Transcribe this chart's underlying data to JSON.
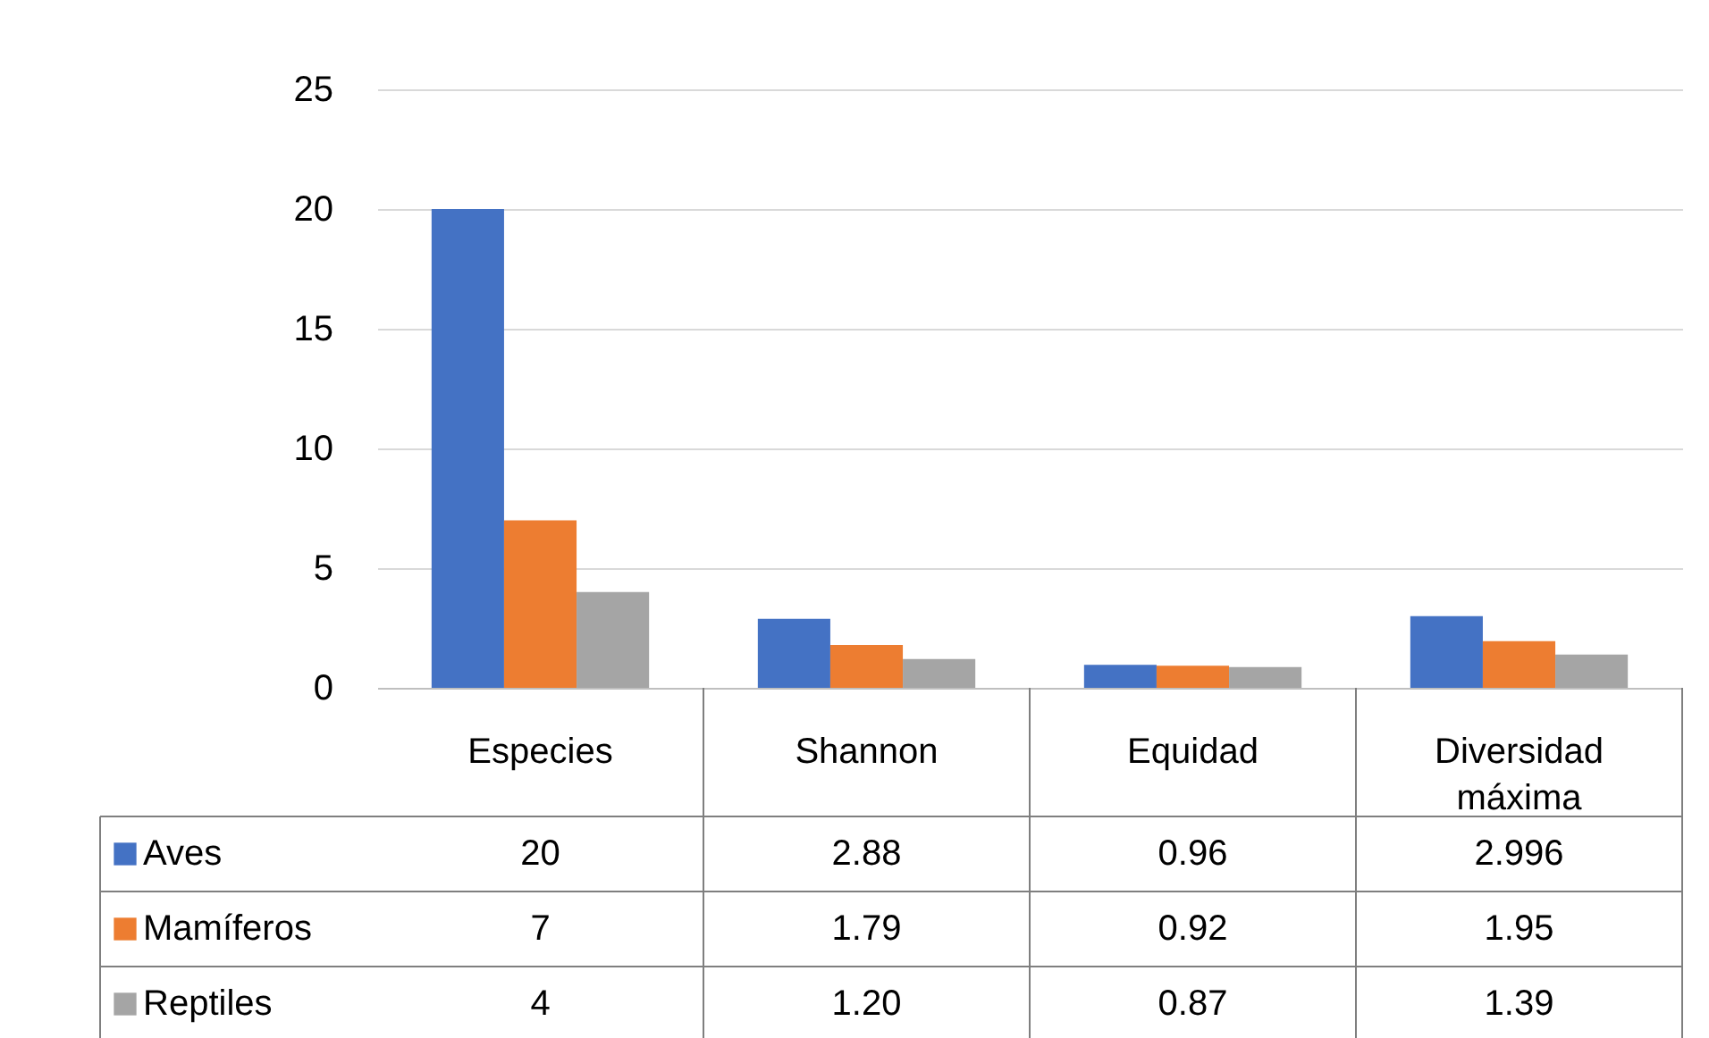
{
  "chart_data": {
    "type": "bar",
    "categories": [
      "Especies",
      "Shannon",
      "Equidad",
      "Diversidad máxima"
    ],
    "series": [
      {
        "name": "Aves",
        "color": "#4472c4",
        "values": [
          20,
          2.88,
          0.96,
          2.996
        ],
        "value_labels": [
          "20",
          "2.88",
          "0.96",
          "2.996"
        ]
      },
      {
        "name": "Mamíferos",
        "color": "#ed7d31",
        "values": [
          7,
          1.79,
          0.92,
          1.95
        ],
        "value_labels": [
          "7",
          "1.79",
          "0.92",
          "1.95"
        ]
      },
      {
        "name": "Reptiles",
        "color": "#a5a5a5",
        "values": [
          4,
          1.2,
          0.87,
          1.39
        ],
        "value_labels": [
          "4",
          "1.20",
          "0.87",
          "1.39"
        ]
      }
    ],
    "ylim": [
      0,
      25
    ],
    "yticks": [
      0,
      5,
      10,
      15,
      20,
      25
    ],
    "grid": "y",
    "legend": "bottom"
  }
}
